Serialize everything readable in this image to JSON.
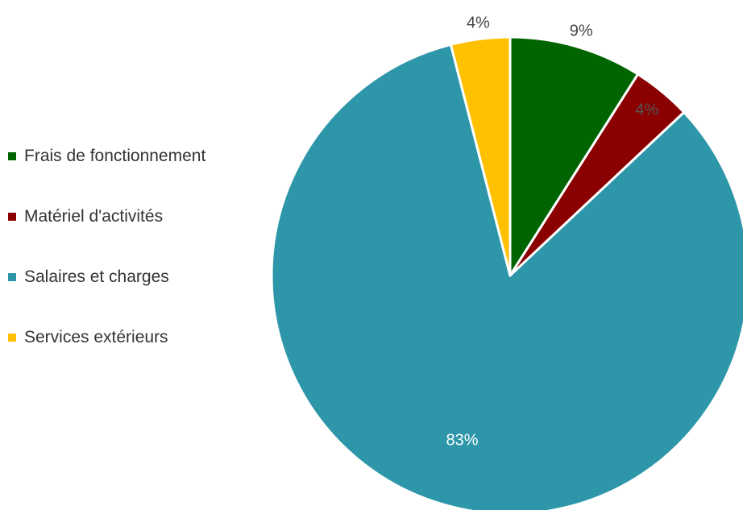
{
  "chart_data": {
    "type": "pie",
    "title": "",
    "legend_position": "left",
    "slices": [
      {
        "name": "Frais de fonctionnement",
        "value": 9,
        "label": "9%",
        "color": "#006400"
      },
      {
        "name": "Matériel d'activités",
        "value": 4,
        "label": "4%",
        "color": "#8b0000"
      },
      {
        "name": "Salaires et charges",
        "value": 83,
        "label": "83%",
        "color": "#2e96a9"
      },
      {
        "name": "Services extérieurs",
        "value": 4,
        "label": "4%",
        "color": "#ffc000"
      }
    ]
  }
}
